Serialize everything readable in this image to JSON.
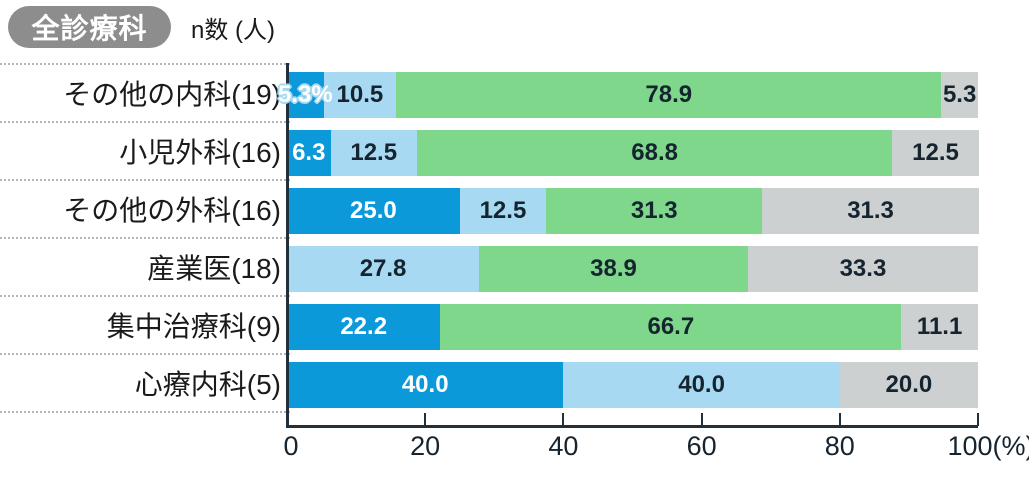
{
  "header": {
    "badge": "全診療科",
    "unit_label": "n数 (人)"
  },
  "colors": {
    "primary": "#0c99da",
    "secondary": "#a7d9f3",
    "tertiary": "#7fd78b",
    "quaternary": "#cdd0d1",
    "badge": "#8d8d8d",
    "axis": "#21303b",
    "separator": "#b6b6b6"
  },
  "chart_data": {
    "type": "bar",
    "subtype": "horizontal-stacked-100percent",
    "title": "全診療科",
    "unit": "%",
    "grid": "dotted row separators, left of axis only",
    "legend": "none",
    "x_axis": {
      "min": 0,
      "max": 100,
      "ticks": [
        {
          "label": "0",
          "pct": 0,
          "mark": false,
          "offset": 4
        },
        {
          "label": "20",
          "pct": 20,
          "mark": true,
          "offset": 0
        },
        {
          "label": "40",
          "pct": 40,
          "mark": true,
          "offset": 0
        },
        {
          "label": "60",
          "pct": 60,
          "mark": true,
          "offset": 0
        },
        {
          "label": "80",
          "pct": 80,
          "mark": true,
          "offset": 0
        },
        {
          "label": "100(%)",
          "pct": 100,
          "mark": true,
          "offset": 13
        }
      ]
    },
    "rows": [
      {
        "label": "その他の内科(19)",
        "n": 19,
        "segments": [
          {
            "value": 5.3,
            "label": "5.3%",
            "color_key": "primary",
            "label_style": "outlined-white"
          },
          {
            "value": 10.5,
            "label": "10.5",
            "color_key": "secondary"
          },
          {
            "value": 78.9,
            "label": "78.9",
            "color_key": "tertiary"
          },
          {
            "value": 5.3,
            "label": "5.3",
            "color_key": "quaternary"
          }
        ]
      },
      {
        "label": "小児外科(16)",
        "n": 16,
        "segments": [
          {
            "value": 6.3,
            "label": "6.3",
            "color_key": "primary"
          },
          {
            "value": 12.5,
            "label": "12.5",
            "color_key": "secondary"
          },
          {
            "value": 68.8,
            "label": "68.8",
            "color_key": "tertiary"
          },
          {
            "value": 12.5,
            "label": "12.5",
            "color_key": "quaternary"
          }
        ]
      },
      {
        "label": "その他の外科(16)",
        "n": 16,
        "segments": [
          {
            "value": 25.0,
            "label": "25.0",
            "color_key": "primary"
          },
          {
            "value": 12.5,
            "label": "12.5",
            "color_key": "secondary"
          },
          {
            "value": 31.3,
            "label": "31.3",
            "color_key": "tertiary"
          },
          {
            "value": 31.3,
            "label": "31.3",
            "color_key": "quaternary"
          }
        ]
      },
      {
        "label": "産業医(18)",
        "n": 18,
        "segments": [
          {
            "value": 27.8,
            "label": "27.8",
            "color_key": "secondary"
          },
          {
            "value": 38.9,
            "label": "38.9",
            "color_key": "tertiary"
          },
          {
            "value": 33.3,
            "label": "33.3",
            "color_key": "quaternary"
          }
        ]
      },
      {
        "label": "集中治療科(9)",
        "n": 9,
        "segments": [
          {
            "value": 22.2,
            "label": "22.2",
            "color_key": "primary"
          },
          {
            "value": 66.7,
            "label": "66.7",
            "color_key": "tertiary"
          },
          {
            "value": 11.1,
            "label": "11.1",
            "color_key": "quaternary"
          }
        ]
      },
      {
        "label": "心療内科(5)",
        "n": 5,
        "segments": [
          {
            "value": 40.0,
            "label": "40.0",
            "color_key": "primary"
          },
          {
            "value": 40.0,
            "label": "40.0",
            "color_key": "secondary"
          },
          {
            "value": 20.0,
            "label": "20.0",
            "color_key": "quaternary"
          }
        ]
      }
    ]
  }
}
